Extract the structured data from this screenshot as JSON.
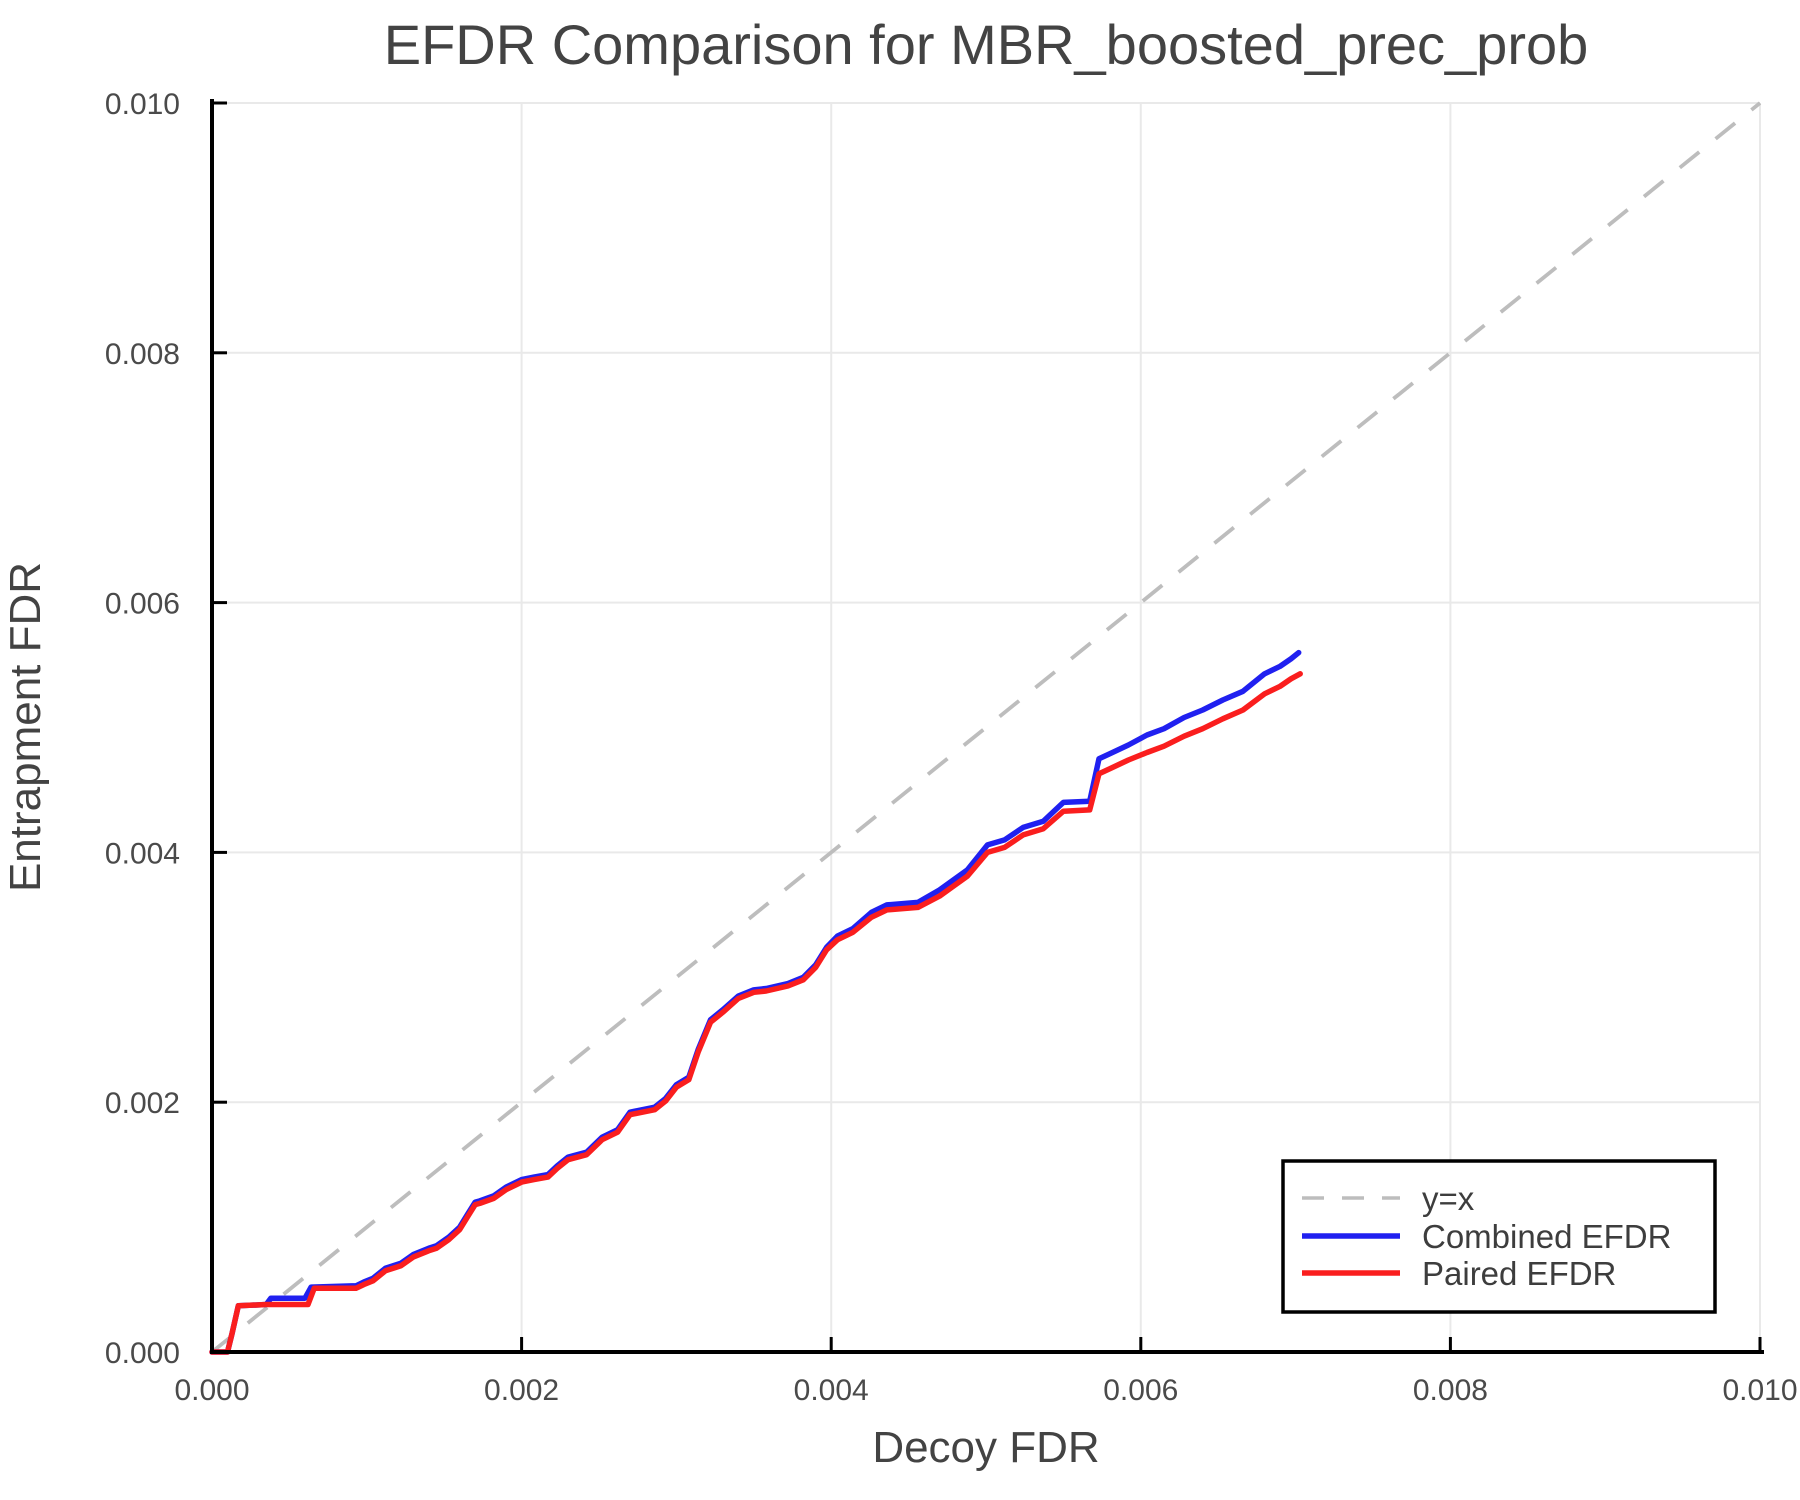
{
  "page": {
    "background": "#ffffff"
  },
  "chart_data": {
    "type": "line",
    "title": "EFDR Comparison for MBR_boosted_prec_prob",
    "xlabel": "Decoy FDR",
    "ylabel": "Entrapment FDR",
    "xlim": [
      0.0,
      0.01
    ],
    "ylim": [
      0.0,
      0.01
    ],
    "xticks": [
      0.0,
      0.002,
      0.004,
      0.006,
      0.008,
      0.01
    ],
    "yticks": [
      0.0,
      0.002,
      0.004,
      0.006,
      0.008,
      0.01
    ],
    "xtick_labels": [
      "0.000",
      "0.002",
      "0.004",
      "0.006",
      "0.008",
      "0.010"
    ],
    "ytick_labels": [
      "0.000",
      "0.002",
      "0.004",
      "0.006",
      "0.008",
      "0.010"
    ],
    "grid": true,
    "grid_color": "#e9e9e9",
    "spine_color": "#000000",
    "tick_color": "#000000",
    "legend": {
      "position": "lower right",
      "background": "#ffffff",
      "border_color": "#000000",
      "items": [
        "y=x",
        "Combined EFDR",
        "Paired EFDR"
      ]
    },
    "reference_line": {
      "name": "y=x",
      "style": "dashed",
      "color": "#bdbdbd",
      "x": [
        0.0,
        0.01
      ],
      "y": [
        0.0,
        0.01
      ]
    },
    "series": [
      {
        "name": "Combined EFDR",
        "color": "#2020f0",
        "x": [
          0.0,
          0.0001,
          0.00013,
          0.00017,
          0.00035,
          0.00038,
          0.0006,
          0.00064,
          0.00093,
          0.00098,
          0.00104,
          0.00112,
          0.00122,
          0.0013,
          0.0014,
          0.00145,
          0.00153,
          0.0016,
          0.00165,
          0.0017,
          0.00173,
          0.00182,
          0.0019,
          0.002,
          0.00208,
          0.00217,
          0.00223,
          0.0023,
          0.00242,
          0.00252,
          0.00262,
          0.0027,
          0.00286,
          0.00293,
          0.003,
          0.00308,
          0.00314,
          0.00322,
          0.0033,
          0.0034,
          0.0035,
          0.00358,
          0.00372,
          0.00382,
          0.0039,
          0.00397,
          0.00404,
          0.00414,
          0.00426,
          0.00436,
          0.00456,
          0.0047,
          0.00488,
          0.00501,
          0.00512,
          0.00524,
          0.00537,
          0.0055,
          0.00567,
          0.00573,
          0.0058,
          0.00592,
          0.00604,
          0.00615,
          0.00628,
          0.0064,
          0.00653,
          0.00666,
          0.0068,
          0.0069,
          0.00697,
          0.00702
        ],
        "y": [
          0.0,
          0.0,
          0.00015,
          0.00037,
          0.00038,
          0.00043,
          0.00043,
          0.00052,
          0.00053,
          0.00056,
          0.00059,
          0.00067,
          0.00071,
          0.00078,
          0.00083,
          0.00085,
          0.00092,
          0.001,
          0.0011,
          0.0012,
          0.00121,
          0.00125,
          0.00132,
          0.00138,
          0.0014,
          0.00142,
          0.00149,
          0.00156,
          0.0016,
          0.00172,
          0.00178,
          0.00192,
          0.00196,
          0.00203,
          0.00214,
          0.0022,
          0.00242,
          0.00266,
          0.00274,
          0.00285,
          0.0029,
          0.00291,
          0.00295,
          0.003,
          0.0031,
          0.00324,
          0.00333,
          0.00339,
          0.00352,
          0.00358,
          0.0036,
          0.0037,
          0.00386,
          0.00406,
          0.0041,
          0.0042,
          0.00425,
          0.0044,
          0.00441,
          0.00475,
          0.00479,
          0.00486,
          0.00494,
          0.00499,
          0.00508,
          0.00514,
          0.00522,
          0.00529,
          0.00543,
          0.00549,
          0.00555,
          0.0056
        ]
      },
      {
        "name": "Paired EFDR",
        "color": "#fa1e1e",
        "x": [
          0.0,
          0.0001,
          0.00013,
          0.00017,
          0.00035,
          0.00062,
          0.00066,
          0.00093,
          0.00098,
          0.00104,
          0.00112,
          0.00122,
          0.0013,
          0.0014,
          0.00145,
          0.00153,
          0.0016,
          0.00165,
          0.0017,
          0.00173,
          0.00182,
          0.0019,
          0.002,
          0.00208,
          0.00217,
          0.00223,
          0.0023,
          0.00242,
          0.00252,
          0.00262,
          0.0027,
          0.00286,
          0.00293,
          0.003,
          0.00308,
          0.00314,
          0.00322,
          0.0033,
          0.0034,
          0.0035,
          0.00358,
          0.00372,
          0.00382,
          0.0039,
          0.00397,
          0.00404,
          0.00414,
          0.00426,
          0.00436,
          0.00456,
          0.0047,
          0.00488,
          0.00501,
          0.00512,
          0.00524,
          0.00537,
          0.0055,
          0.00567,
          0.00573,
          0.0058,
          0.00592,
          0.00604,
          0.00615,
          0.00628,
          0.0064,
          0.00653,
          0.00666,
          0.0068,
          0.0069,
          0.00697,
          0.00703
        ],
        "y": [
          0.0,
          0.0,
          0.00015,
          0.00037,
          0.00038,
          0.00038,
          0.00051,
          0.00051,
          0.00054,
          0.00057,
          0.00065,
          0.00069,
          0.00076,
          0.00081,
          0.00083,
          0.0009,
          0.00098,
          0.00108,
          0.00118,
          0.00119,
          0.00123,
          0.0013,
          0.00136,
          0.00138,
          0.0014,
          0.00147,
          0.00154,
          0.00158,
          0.0017,
          0.00176,
          0.0019,
          0.00194,
          0.00201,
          0.00212,
          0.00218,
          0.0024,
          0.00264,
          0.00272,
          0.00283,
          0.00288,
          0.00289,
          0.00293,
          0.00298,
          0.00308,
          0.00322,
          0.0033,
          0.00336,
          0.00348,
          0.00354,
          0.00356,
          0.00365,
          0.00381,
          0.004,
          0.00404,
          0.00414,
          0.00419,
          0.00433,
          0.00434,
          0.00463,
          0.00467,
          0.00474,
          0.0048,
          0.00485,
          0.00493,
          0.00499,
          0.00507,
          0.00514,
          0.00527,
          0.00533,
          0.00539,
          0.00543
        ]
      }
    ]
  }
}
